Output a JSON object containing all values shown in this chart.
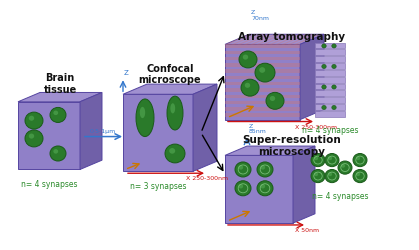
{
  "bg_color": "#ffffff",
  "cube_face_color": "#9080c8",
  "cube_top_color": "#a090d0",
  "cube_right_color": "#7060a8",
  "cube_edge_color": "#5545a0",
  "synapse_color": "#2a7a2a",
  "synapse_edge": "#1a5a1a",
  "synapse_highlight": "#55aa55",
  "title_color": "#111111",
  "label_color": "#2a8a2a",
  "axis_blue": "#3377cc",
  "axis_red": "#cc1111",
  "axis_orange": "#cc7700",
  "arrow_color": "#111111",
  "stripe_color": "#cc7777",
  "stripe_alpha": 0.4,
  "section_color": "#b0a0d8",
  "section_line": "#8878b8",
  "titles": {
    "brain": "Brain\ntissue",
    "confocal": "Confocal\nmicroscope",
    "array": "Array tomography",
    "superres": "Super-resolution\nmicroscopy"
  },
  "labels": {
    "brain_n": "n= 4 synapses",
    "confocal_n": "n= 3 synapses",
    "array_n": "n= 4 synapses",
    "superres_n": "n= 4 synapses"
  },
  "annotations": {
    "confocal_z": "Z",
    "confocal_x": "X 250-300nm",
    "confocal_arrow": "0-5-1μm",
    "array_z": "Z\n70nm",
    "array_x": "X 250-300nm",
    "superres_z": "Z\n85nm",
    "superres_x": "X 50nm"
  }
}
